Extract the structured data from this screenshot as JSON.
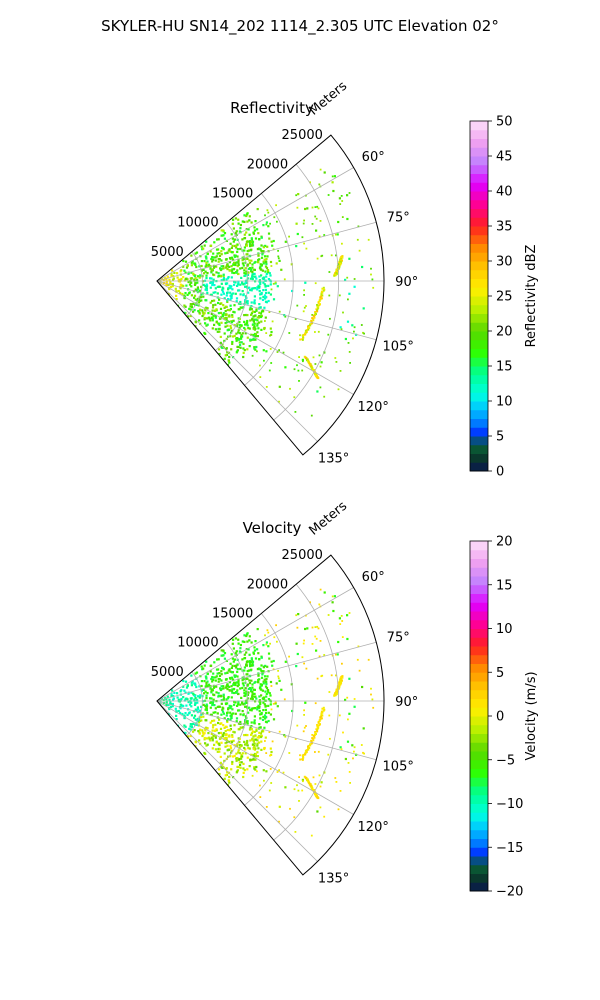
{
  "title": "SKYLER-HU  SN14_202  1114_2.305 UTC Elevation 02°",
  "chart_data": [
    {
      "type": "heatmap",
      "projection": "polar-sector",
      "title": "Reflectivity",
      "radial_label": "Meters",
      "radial_ticks": [
        5000,
        10000,
        15000,
        20000,
        25000
      ],
      "rmax": 25000,
      "azimuth_range_deg": [
        50,
        140
      ],
      "azimuth_ticks": [
        "60°",
        "75°",
        "90°",
        "105°",
        "120°",
        "135°"
      ],
      "azimuth_tick_values": [
        60,
        75,
        90,
        105,
        120,
        135
      ],
      "grid": true,
      "colorbar": {
        "label": "Reflectivity dBZ",
        "range": [
          0,
          50
        ],
        "ticks": [
          "0",
          "5",
          "10",
          "15",
          "20",
          "25",
          "30",
          "35",
          "40",
          "45",
          "50"
        ],
        "tick_values": [
          0,
          5,
          10,
          15,
          20,
          25,
          30,
          35,
          40,
          45,
          50
        ]
      }
    },
    {
      "type": "heatmap",
      "projection": "polar-sector",
      "title": "Velocity",
      "radial_label": "Meters",
      "radial_ticks": [
        5000,
        10000,
        15000,
        20000,
        25000
      ],
      "rmax": 25000,
      "azimuth_range_deg": [
        50,
        140
      ],
      "azimuth_ticks": [
        "60°",
        "75°",
        "90°",
        "105°",
        "120°",
        "135°"
      ],
      "azimuth_tick_values": [
        60,
        75,
        90,
        105,
        120,
        135
      ],
      "grid": true,
      "colorbar": {
        "label": "Velocity (m/s)",
        "range": [
          -20,
          20
        ],
        "ticks": [
          "−20",
          "−15",
          "−10",
          "−5",
          "0",
          "5",
          "10",
          "15",
          "20"
        ],
        "tick_values": [
          -20,
          -15,
          -10,
          -5,
          0,
          5,
          10,
          15,
          20
        ]
      }
    }
  ]
}
